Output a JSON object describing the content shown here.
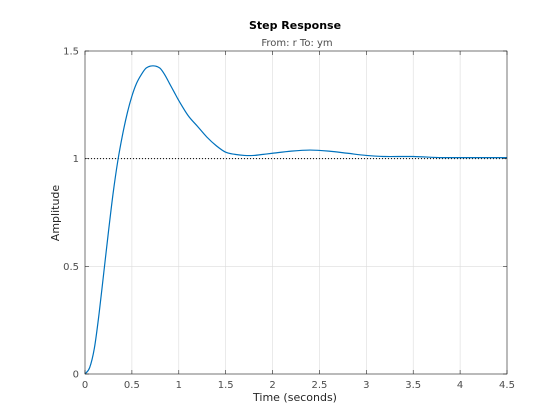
{
  "chart_data": {
    "type": "line",
    "title": "Step Response",
    "subtitle": "From: r  To: ym",
    "xlabel": "Time (seconds)",
    "ylabel": "Amplitude",
    "xlim": [
      0,
      4.5
    ],
    "ylim": [
      0,
      1.5
    ],
    "xticks": [
      "0",
      "0.5",
      "1",
      "1.5",
      "2",
      "2.5",
      "3",
      "3.5",
      "4",
      "4.5"
    ],
    "yticks": [
      "0",
      "0.5",
      "1",
      "1.5"
    ],
    "grid": true,
    "reference_line": {
      "y": 1,
      "style": "dotted",
      "color": "#000000"
    },
    "series": [
      {
        "color": "#0072bd",
        "x": [
          0,
          0.05,
          0.1,
          0.15,
          0.2,
          0.25,
          0.3,
          0.35,
          0.4,
          0.45,
          0.5,
          0.55,
          0.6,
          0.65,
          0.7,
          0.75,
          0.8,
          0.85,
          0.9,
          0.95,
          1.0,
          1.1,
          1.2,
          1.3,
          1.4,
          1.5,
          1.6,
          1.7,
          1.8,
          1.9,
          2.0,
          2.2,
          2.4,
          2.6,
          2.8,
          3.0,
          3.2,
          3.5,
          3.8,
          4.1,
          4.5
        ],
        "y": [
          0,
          0.03,
          0.12,
          0.28,
          0.47,
          0.66,
          0.84,
          0.99,
          1.11,
          1.21,
          1.29,
          1.35,
          1.39,
          1.42,
          1.43,
          1.43,
          1.42,
          1.39,
          1.35,
          1.31,
          1.27,
          1.2,
          1.15,
          1.1,
          1.06,
          1.03,
          1.02,
          1.015,
          1.015,
          1.02,
          1.025,
          1.035,
          1.04,
          1.035,
          1.025,
          1.015,
          1.01,
          1.01,
          1.005,
          1.005,
          1.005
        ]
      }
    ]
  }
}
